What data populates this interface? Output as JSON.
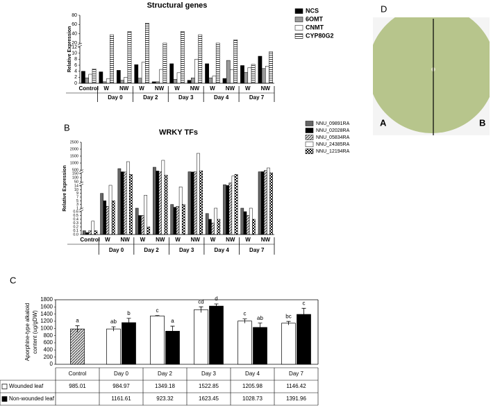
{
  "chart_data": [
    {
      "type": "bar",
      "title": "Structural genes",
      "ylabel": "Relative Expression",
      "categories": [
        "Control",
        "W",
        "NW",
        "W",
        "NW",
        "W",
        "NW",
        "W",
        "NW",
        "W",
        "NW"
      ],
      "groups": [
        "Day 0",
        "Day 2",
        "Day 3",
        "Day 4",
        "Day 7"
      ],
      "ylim": [
        0,
        80
      ],
      "yticks": [
        0,
        2,
        4,
        6,
        8,
        10,
        12,
        20,
        40,
        60,
        80
      ],
      "ybreaks": [
        [
          12,
          20
        ]
      ],
      "series": [
        {
          "name": "NCS",
          "color": "#000000",
          "values": [
            4,
            3.8,
            4.3,
            6.2,
            0.5,
            6.5,
            1,
            6.5,
            1.6,
            5.9,
            9
          ]
        },
        {
          "name": "6OMT",
          "color": "#999999",
          "values": [
            1.8,
            0.5,
            1,
            1.7,
            0.5,
            1.3,
            1.8,
            1.8,
            7.6,
            3.6,
            4.9
          ]
        },
        {
          "name": "CNMT",
          "color": "#ffffff",
          "values": [
            3,
            1.5,
            2,
            7,
            4.6,
            3.5,
            8,
            2.4,
            4.5,
            5.2,
            5.7
          ]
        },
        {
          "name": "CYP80G2",
          "color": "#ffffff",
          "pattern": "hlines",
          "values": [
            4.8,
            38,
            45,
            63,
            20,
            45,
            38,
            20,
            27,
            6.3,
            10.5
          ]
        }
      ]
    },
    {
      "type": "bar",
      "title": "WRKY TFs",
      "ylabel": "Relative Expression",
      "categories": [
        "Control",
        "W",
        "NW",
        "W",
        "NW",
        "W",
        "NW",
        "W",
        "NW",
        "W",
        "NW"
      ],
      "groups": [
        "Day 0",
        "Day 2",
        "Day 3",
        "Day 4",
        "Day 7"
      ],
      "ylim": [
        0,
        2500
      ],
      "yticks": [
        {
          "value": 0,
          "label": "0.0"
        },
        0.1,
        0.2,
        0.3,
        0.4,
        0.5,
        0.6,
        1,
        3,
        5,
        7,
        9,
        10,
        14,
        50,
        100,
        150,
        500,
        1000,
        1500,
        2000,
        2500
      ],
      "ybreaks": [
        [
          0.6,
          1
        ],
        [
          14,
          50
        ],
        [
          150,
          500
        ]
      ],
      "series": [
        {
          "name": "NNU_09891RA",
          "color": "#666666",
          "values": [
            0.1,
            9,
            600,
            1,
            700,
            3,
            320,
            0.55,
            25,
            1,
            320
          ]
        },
        {
          "name": "NNU_02028RA",
          "color": "#000000",
          "values": [
            0.05,
            5,
            320,
            0.5,
            400,
            1.5,
            300,
            0.4,
            18,
            0.6,
            330
          ]
        },
        {
          "name": "NNU_05834RA",
          "color": "#aaaaaa",
          "pattern": "diag",
          "values": [
            0.1,
            2,
            300,
            0.5,
            320,
            2,
            320,
            0.3,
            40,
            0.5,
            450
          ]
        },
        {
          "name": "NNU_24385RA",
          "color": "#ffffff",
          "values": [
            0.35,
            20,
            1100,
            8,
            1200,
            13,
            1700,
            1,
            120,
            1,
            650
          ]
        },
        {
          "name": "NNU_12194RA",
          "color": "#cccccc",
          "pattern": "checker",
          "values": [
            0.1,
            5,
            140,
            0.2,
            130,
            3,
            420,
            0.4,
            140,
            0.4,
            220
          ]
        }
      ]
    },
    {
      "type": "bar",
      "ylabel": [
        "Aporphine-type alkaloid",
        "content (ug/gDW)"
      ],
      "categories": [
        "Control",
        "Day 0",
        "Day 2",
        "Day 3",
        "Day 4",
        "Day 7"
      ],
      "ylim": [
        0,
        1800
      ],
      "yticks": [
        0,
        200,
        400,
        600,
        800,
        1000,
        1200,
        1400,
        1600,
        1800
      ],
      "series": [
        {
          "name": "Wounded leaf",
          "color": "#ffffff",
          "values": [
            985.01,
            984.97,
            1349.18,
            1522.85,
            1205.98,
            1146.42
          ],
          "errors": [
            90,
            60,
            10,
            80,
            60,
            50
          ],
          "sig_labels": [
            "a",
            "ab",
            "c",
            "cd",
            "c",
            "bc"
          ]
        },
        {
          "name": "Non-wounded leaf",
          "color": "#000000",
          "values": [
            null,
            1161.61,
            923.32,
            1623.45,
            1028.73,
            1391.96
          ],
          "errors": [
            null,
            120,
            140,
            60,
            120,
            170
          ],
          "sig_labels": [
            null,
            "b",
            "a",
            "d",
            "ab",
            "c"
          ]
        }
      ]
    }
  ],
  "panels": {
    "b": "B",
    "c": "C"
  },
  "photo": {
    "label": "D",
    "left": "A",
    "right": "B"
  }
}
